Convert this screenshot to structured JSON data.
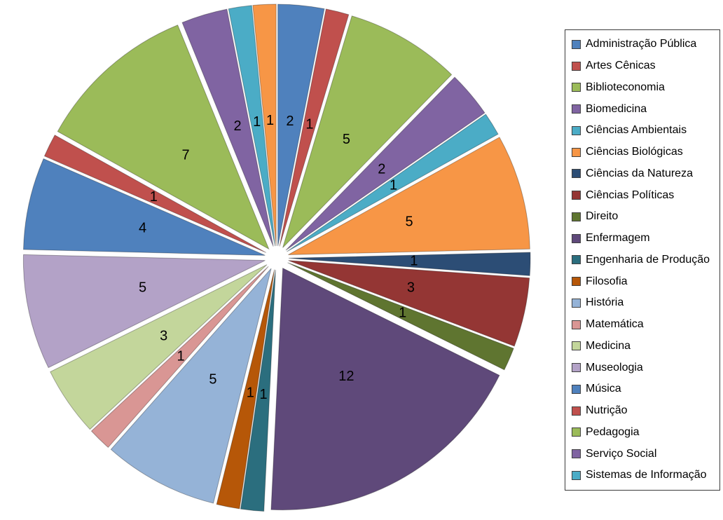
{
  "page": {
    "background": "#FFFFFF"
  },
  "chart_data": {
    "type": "pie",
    "title": "",
    "total": 65,
    "legend_position": "right",
    "start_angle_deg": 0,
    "direction": "clockwise",
    "exploded": true,
    "slices": [
      {
        "label": "Administração Pública",
        "value": 2,
        "color": "#4F81BD",
        "in_legend": true
      },
      {
        "label": "Artes Cênicas",
        "value": 1,
        "color": "#C0504D",
        "in_legend": true
      },
      {
        "label": "Biblioteconomia",
        "value": 5,
        "color": "#9BBB59",
        "in_legend": true
      },
      {
        "label": "Biomedicina",
        "value": 2,
        "color": "#8064A2",
        "in_legend": true
      },
      {
        "label": "Ciências Ambientais",
        "value": 1,
        "color": "#4BACC6",
        "in_legend": true
      },
      {
        "label": "Ciências Biológicas",
        "value": 5,
        "color": "#F79646",
        "in_legend": true
      },
      {
        "label": "Ciências da Natureza",
        "value": 1,
        "color": "#2C4D75",
        "in_legend": true
      },
      {
        "label": "Ciências Políticas",
        "value": 3,
        "color": "#943634",
        "in_legend": true
      },
      {
        "label": "Direito",
        "value": 1,
        "color": "#5F7530",
        "in_legend": true
      },
      {
        "label": "Enfermagem",
        "value": 12,
        "color": "#5F497A",
        "in_legend": true
      },
      {
        "label": "Engenharia de Produção",
        "value": 1,
        "color": "#2B6E7E",
        "in_legend": true
      },
      {
        "label": "Filosofia",
        "value": 1,
        "color": "#B65708",
        "in_legend": true
      },
      {
        "label": "História",
        "value": 5,
        "color": "#95B3D7",
        "in_legend": true
      },
      {
        "label": "Matemática",
        "value": 1,
        "color": "#D99694",
        "in_legend": true
      },
      {
        "label": "Medicina",
        "value": 3,
        "color": "#C3D69B",
        "in_legend": true
      },
      {
        "label": "Museologia",
        "value": 5,
        "color": "#B3A2C7",
        "in_legend": true
      },
      {
        "label": "Música",
        "value": 4,
        "color": "#4F81BD",
        "in_legend": true
      },
      {
        "label": "Nutrição",
        "value": 1,
        "color": "#C0504D",
        "in_legend": true
      },
      {
        "label": "Pedagogia",
        "value": 7,
        "color": "#9BBB59",
        "in_legend": true
      },
      {
        "label": "Serviço Social",
        "value": 2,
        "color": "#8064A2",
        "in_legend": true
      },
      {
        "label": "Sistemas de Informação",
        "value": 1,
        "color": "#4BACC6",
        "in_legend": true
      },
      {
        "label": "",
        "value": 1,
        "color": "#F79646",
        "in_legend": false
      }
    ]
  }
}
